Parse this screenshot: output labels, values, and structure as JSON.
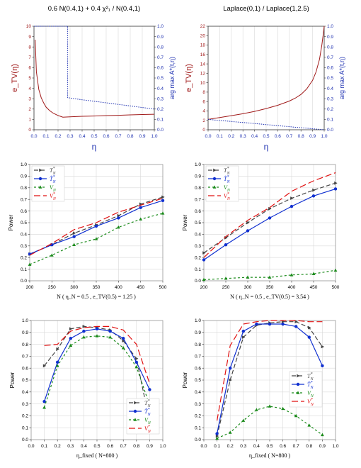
{
  "chart_data": [
    {
      "type": "line",
      "title": "0.6 N(0.4,1) + 0.4 χ²₁ / N(0.4,1)",
      "xlabel": "η",
      "ylabel": "e_TV(η)",
      "ylabel_right": "arg max A*(t,η)",
      "xlim": [
        0,
        1
      ],
      "ylim": [
        0,
        10
      ],
      "ylim_right": [
        0,
        1
      ],
      "x_ticks": [
        0.0,
        0.1,
        0.2,
        0.3,
        0.4,
        0.5,
        0.6,
        0.7,
        0.8,
        0.9,
        1.0
      ],
      "y_ticks": [
        0,
        1,
        2,
        3,
        4,
        5,
        6,
        7,
        8,
        9,
        10
      ],
      "y_ticks_right": [
        0.0,
        0.1,
        0.2,
        0.3,
        0.4,
        0.5,
        0.6,
        0.7,
        0.8,
        0.9,
        1.0
      ],
      "grid": "vertical",
      "series": [
        {
          "axis": "left",
          "color": "#a01a1a",
          "style": "solid",
          "x": [
            0.01,
            0.02,
            0.04,
            0.06,
            0.08,
            0.1,
            0.13,
            0.16,
            0.2,
            0.24,
            0.3,
            0.4,
            0.5,
            0.6,
            0.7,
            0.8,
            0.9,
            1.0
          ],
          "y": [
            8.7,
            5.6,
            3.9,
            3.1,
            2.6,
            2.2,
            1.85,
            1.6,
            1.38,
            1.22,
            1.25,
            1.3,
            1.33,
            1.37,
            1.4,
            1.44,
            1.47,
            1.5
          ]
        },
        {
          "axis": "right",
          "color": "#1c2fb0",
          "style": "dotted",
          "x": [
            0.0,
            0.1,
            0.2,
            0.28,
            0.28,
            0.4,
            0.5,
            0.6,
            0.7,
            0.8,
            0.9,
            1.0
          ],
          "y": [
            1.0,
            1.0,
            1.0,
            1.0,
            0.31,
            0.29,
            0.275,
            0.26,
            0.245,
            0.23,
            0.215,
            0.2
          ]
        }
      ]
    },
    {
      "type": "line",
      "title": "Laplace(0,1) / Laplace(1,2.5)",
      "xlabel": "η",
      "ylabel": "e_TV(η)",
      "ylabel_right": "arg max A*(t,η)",
      "xlim": [
        0,
        1
      ],
      "ylim": [
        0,
        22
      ],
      "ylim_right": [
        0,
        1
      ],
      "x_ticks": [
        0.0,
        0.1,
        0.2,
        0.3,
        0.4,
        0.5,
        0.6,
        0.7,
        0.8,
        0.9,
        1.0
      ],
      "y_ticks": [
        0,
        2,
        4,
        6,
        8,
        10,
        12,
        14,
        16,
        18,
        20,
        22
      ],
      "y_ticks_right": [
        0.0,
        0.1,
        0.2,
        0.3,
        0.4,
        0.5,
        0.6,
        0.7,
        0.8,
        0.9,
        1.0
      ],
      "grid": "vertical",
      "series": [
        {
          "axis": "left",
          "color": "#a01a1a",
          "style": "solid",
          "x": [
            0.0,
            0.1,
            0.2,
            0.3,
            0.4,
            0.5,
            0.6,
            0.7,
            0.75,
            0.8,
            0.85,
            0.9,
            0.93,
            0.96,
            0.98,
            0.99,
            1.0
          ],
          "y": [
            2.2,
            2.6,
            3.0,
            3.4,
            3.9,
            4.5,
            5.2,
            6.1,
            6.7,
            7.5,
            8.7,
            10.5,
            12.3,
            15.0,
            18.0,
            20.0,
            22.0
          ]
        },
        {
          "axis": "right",
          "color": "#1c2fb0",
          "style": "dotted",
          "x": [
            0.0,
            0.2,
            0.4,
            0.6,
            0.8,
            1.0
          ],
          "y": [
            0.1,
            0.08,
            0.06,
            0.04,
            0.02,
            0.0
          ]
        }
      ]
    },
    {
      "type": "line",
      "title": "",
      "xlabel": "N ( η_N = 0.5 , e_TV(0.5) = 1.25 )",
      "ylabel": "Power",
      "xlim": [
        200,
        500
      ],
      "ylim": [
        0,
        1
      ],
      "x_ticks": [
        200,
        250,
        300,
        350,
        400,
        450,
        500
      ],
      "y_ticks": [
        0.0,
        0.1,
        0.2,
        0.3,
        0.4,
        0.5,
        0.6,
        0.7,
        0.8,
        0.9,
        1.0
      ],
      "grid": "both",
      "legend": "top-left",
      "x": [
        200,
        250,
        300,
        350,
        400,
        450,
        500
      ],
      "series": [
        {
          "name": "T*N",
          "legend": {
            "base": "T",
            "sup": "*",
            "sub": "N"
          },
          "color": "#444444",
          "dash": "6,3",
          "marker": "tri-right",
          "values": [
            0.23,
            0.31,
            0.41,
            0.48,
            0.56,
            0.66,
            0.72
          ]
        },
        {
          "name": "T̂*N",
          "legend": {
            "base": "T̂",
            "sup": "*",
            "sub": "N"
          },
          "color": "#1030d0",
          "dash": "",
          "marker": "dot",
          "values": [
            0.23,
            0.31,
            0.38,
            0.47,
            0.54,
            0.63,
            0.69
          ]
        },
        {
          "name": "VN",
          "legend": {
            "base": "V",
            "sup": "",
            "sub": "N"
          },
          "color": "#1a8a1a",
          "dash": "3,3",
          "marker": "tri-up",
          "values": [
            0.14,
            0.22,
            0.31,
            0.36,
            0.46,
            0.53,
            0.58
          ]
        },
        {
          "name": "V*N",
          "legend": {
            "base": "V",
            "sup": "*",
            "sub": "N"
          },
          "color": "#e01010",
          "dash": "9,4",
          "marker": "none",
          "values": [
            0.22,
            0.32,
            0.44,
            0.5,
            0.59,
            0.65,
            0.71
          ]
        }
      ]
    },
    {
      "type": "line",
      "title": "",
      "xlabel": "N ( η_N = 0.5 , e_TV(0.5) = 3.54 )",
      "ylabel": "Power",
      "xlim": [
        200,
        500
      ],
      "ylim": [
        0,
        1
      ],
      "x_ticks": [
        200,
        250,
        300,
        350,
        400,
        450,
        500
      ],
      "y_ticks": [
        0.0,
        0.1,
        0.2,
        0.3,
        0.4,
        0.5,
        0.6,
        0.7,
        0.8,
        0.9,
        1.0
      ],
      "grid": "both",
      "legend": "top-left",
      "x": [
        200,
        250,
        300,
        350,
        400,
        450,
        500
      ],
      "series": [
        {
          "name": "T*N",
          "legend": {
            "base": "T",
            "sup": "*",
            "sub": "N"
          },
          "color": "#444444",
          "dash": "6,3",
          "marker": "tri-right",
          "values": [
            0.24,
            0.37,
            0.5,
            0.62,
            0.71,
            0.78,
            0.84
          ]
        },
        {
          "name": "T̂*N",
          "legend": {
            "base": "T̂",
            "sup": "*",
            "sub": "N"
          },
          "color": "#1030d0",
          "dash": "",
          "marker": "dot",
          "values": [
            0.18,
            0.31,
            0.43,
            0.54,
            0.64,
            0.73,
            0.79
          ]
        },
        {
          "name": "VN",
          "legend": {
            "base": "V",
            "sup": "",
            "sub": "N"
          },
          "color": "#1a8a1a",
          "dash": "3,3",
          "marker": "tri-up",
          "values": [
            0.01,
            0.02,
            0.03,
            0.03,
            0.05,
            0.06,
            0.09
          ]
        },
        {
          "name": "V*N",
          "legend": {
            "base": "V",
            "sup": "*",
            "sub": "N"
          },
          "color": "#e01010",
          "dash": "9,4",
          "marker": "none",
          "values": [
            0.2,
            0.38,
            0.52,
            0.63,
            0.77,
            0.86,
            0.93
          ]
        }
      ]
    },
    {
      "type": "line",
      "title": "",
      "xlabel": "η_fixed ( N=800 )",
      "ylabel": "Power",
      "xlim": [
        0,
        1
      ],
      "ylim": [
        0,
        1
      ],
      "x_ticks": [
        0.0,
        0.1,
        0.2,
        0.3,
        0.4,
        0.5,
        0.6,
        0.7,
        0.8,
        0.9,
        1.0
      ],
      "y_ticks": [
        0.0,
        0.1,
        0.2,
        0.3,
        0.4,
        0.5,
        0.6,
        0.7,
        0.8,
        0.9,
        1.0
      ],
      "grid": "both",
      "legend": "bottom-right",
      "x": [
        0.1,
        0.2,
        0.3,
        0.4,
        0.5,
        0.6,
        0.7,
        0.8,
        0.9
      ],
      "series": [
        {
          "name": "T*N",
          "legend": {
            "base": "T",
            "sup": "*",
            "sub": "N"
          },
          "color": "#444444",
          "dash": "6,3",
          "marker": "tri-right",
          "values": [
            0.62,
            0.76,
            0.93,
            0.95,
            0.94,
            0.92,
            0.83,
            0.68,
            0.15
          ]
        },
        {
          "name": "T̂*N",
          "legend": {
            "base": "T̂",
            "sup": "*",
            "sub": "N"
          },
          "color": "#1030d0",
          "dash": "",
          "marker": "dot",
          "values": [
            0.32,
            0.65,
            0.85,
            0.91,
            0.93,
            0.91,
            0.85,
            0.65,
            0.42
          ]
        },
        {
          "name": "VN",
          "legend": {
            "base": "V",
            "sup": "",
            "sub": "N"
          },
          "color": "#1a8a1a",
          "dash": "3,3",
          "marker": "tri-up",
          "values": [
            0.27,
            0.62,
            0.79,
            0.86,
            0.87,
            0.86,
            0.77,
            0.61,
            0.29
          ]
        },
        {
          "name": "V*N",
          "legend": {
            "base": "V",
            "sup": "*",
            "sub": "N"
          },
          "color": "#e01010",
          "dash": "9,4",
          "marker": "none",
          "values": [
            0.79,
            0.8,
            0.91,
            0.94,
            0.95,
            0.95,
            0.92,
            0.8,
            0.47
          ]
        }
      ]
    },
    {
      "type": "line",
      "title": "",
      "xlabel": "η_fixed ( N=800 )",
      "ylabel": "Power",
      "xlim": [
        0,
        1
      ],
      "ylim": [
        0,
        1
      ],
      "x_ticks": [
        0.0,
        0.1,
        0.2,
        0.3,
        0.4,
        0.5,
        0.6,
        0.7,
        0.8,
        0.9,
        1.0
      ],
      "y_ticks": [
        0.0,
        0.1,
        0.2,
        0.3,
        0.4,
        0.5,
        0.6,
        0.7,
        0.8,
        0.9,
        1.0
      ],
      "grid": "both",
      "legend": "right",
      "x": [
        0.1,
        0.2,
        0.3,
        0.4,
        0.5,
        0.6,
        0.7,
        0.8,
        0.9
      ],
      "series": [
        {
          "name": "T*N",
          "legend": {
            "base": "T",
            "sup": "*",
            "sub": "N"
          },
          "color": "#444444",
          "dash": "6,3",
          "marker": "tri-right",
          "values": [
            0.03,
            0.5,
            0.86,
            0.96,
            0.98,
            0.99,
            0.99,
            0.94,
            0.78
          ]
        },
        {
          "name": "T̂*N",
          "legend": {
            "base": "T̂",
            "sup": "*",
            "sub": "N"
          },
          "color": "#1030d0",
          "dash": "",
          "marker": "dot",
          "values": [
            0.05,
            0.6,
            0.91,
            0.97,
            0.97,
            0.97,
            0.95,
            0.86,
            0.62
          ]
        },
        {
          "name": "VN",
          "legend": {
            "base": "V",
            "sup": "",
            "sub": "N"
          },
          "color": "#1a8a1a",
          "dash": "3,3",
          "marker": "tri-up",
          "values": [
            0.01,
            0.06,
            0.16,
            0.25,
            0.28,
            0.26,
            0.2,
            0.12,
            0.04
          ]
        },
        {
          "name": "V*N",
          "legend": {
            "base": "V",
            "sup": "*",
            "sub": "N"
          },
          "color": "#e01010",
          "dash": "9,4",
          "marker": "none",
          "values": [
            0.16,
            0.79,
            0.97,
            0.99,
            1.0,
            1.0,
            1.0,
            0.99,
            0.99
          ]
        }
      ]
    }
  ]
}
